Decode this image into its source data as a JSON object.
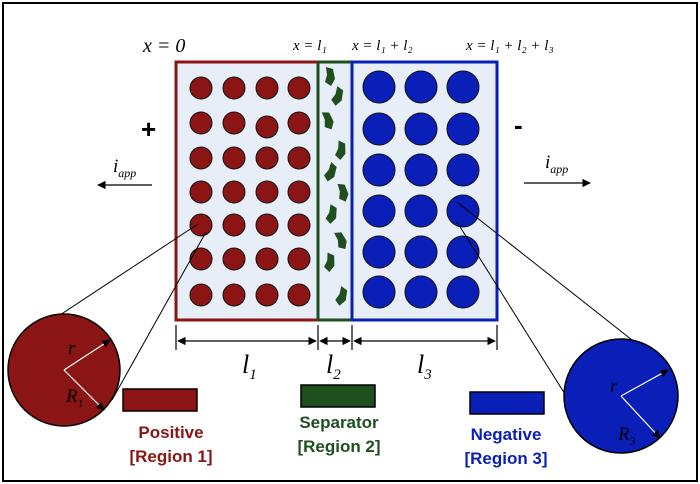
{
  "boundaries": {
    "b0": "x = 0",
    "b1": "x = l₁",
    "b2": "x = l₁ + l₂",
    "b3": "x = l₁ + l₂ + l₃"
  },
  "terminals": {
    "positive": "+",
    "negative": "-"
  },
  "current": {
    "left": "i",
    "left_sub": "app",
    "right": "i",
    "right_sub": "app"
  },
  "lengths": {
    "l1": "l",
    "l1_sub": "1",
    "l2": "l",
    "l2_sub": "2",
    "l3": "l",
    "l3_sub": "3"
  },
  "particles": {
    "left_r": "r",
    "left_R": "R",
    "left_R_sub": "1",
    "right_r": "r",
    "right_R": "R",
    "right_R_sub": "3"
  },
  "legend": {
    "positive": {
      "line1": "Positive",
      "line2": "[Region 1]",
      "color": "#8b1414"
    },
    "separator": {
      "line1": "Separator",
      "line2": "[Region 2]",
      "color": "#1f4f1f"
    },
    "negative": {
      "line1": "Negative",
      "line2": "[Region 3]",
      "color": "#0a1fb8"
    }
  },
  "colors": {
    "positive_particle": "#8b1414",
    "separator_flake": "#1f4f1f",
    "negative_particle": "#0a1fb8",
    "region_fill": "#e8eef7"
  }
}
